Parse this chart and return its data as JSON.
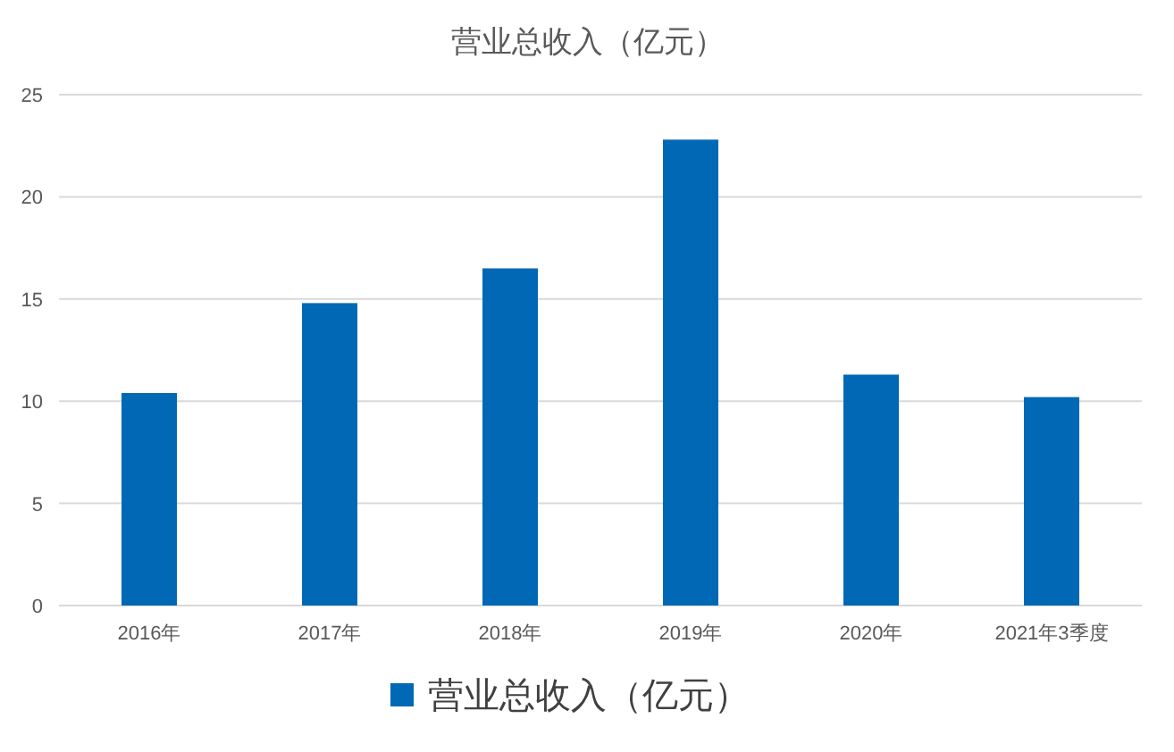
{
  "chart_data": {
    "type": "bar",
    "title": "营业总收入（亿元）",
    "categories": [
      "2016年",
      "2017年",
      "2018年",
      "2019年",
      "2020年",
      "2021年3季度"
    ],
    "series": [
      {
        "name": "营业总收入（亿元）",
        "color": "#0068b5",
        "values": [
          10.4,
          14.8,
          16.5,
          22.8,
          11.3,
          10.2
        ]
      }
    ],
    "ylim": [
      0,
      25
    ],
    "yticks": [
      0,
      5,
      10,
      15,
      20,
      25
    ],
    "grid": "y",
    "legend": "bottom"
  }
}
